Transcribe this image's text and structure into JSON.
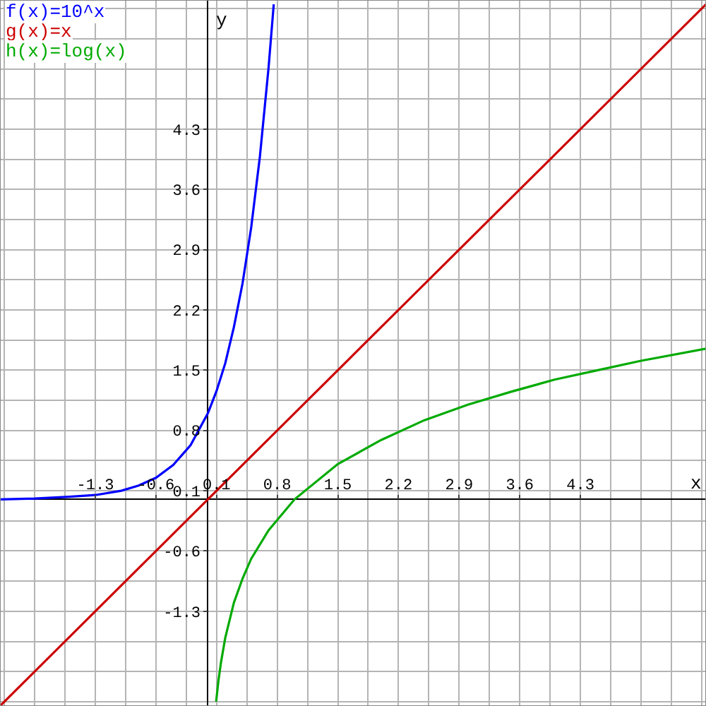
{
  "chart_data": {
    "type": "line",
    "xlabel": "x",
    "ylabel": "y",
    "xlim": [
      -2.4,
      5.75
    ],
    "ylim": [
      -2.4,
      5.8
    ],
    "xticks": [
      -1.3,
      -0.6,
      0.1,
      0.8,
      1.5,
      2.2,
      2.9,
      3.6,
      4.3
    ],
    "yticks": [
      -1.3,
      -0.6,
      0.1,
      0.8,
      1.5,
      2.2,
      2.9,
      3.6,
      4.3
    ],
    "grid": true,
    "legend": "top left",
    "marker": "none",
    "line_style": "solid",
    "series": [
      {
        "name": "f(x)=10^x",
        "color": "#0000ff",
        "x": [
          -2.4,
          -2,
          -1.6,
          -1.3,
          -1,
          -0.8,
          -0.6,
          -0.4,
          -0.2,
          0,
          0.1,
          0.2,
          0.3,
          0.4,
          0.5,
          0.6,
          0.7,
          0.76
        ],
        "values": [
          0.0,
          0.01,
          0.03,
          0.05,
          0.1,
          0.16,
          0.25,
          0.4,
          0.63,
          1,
          1.26,
          1.58,
          2.0,
          2.51,
          3.16,
          3.98,
          5.01,
          5.75
        ]
      },
      {
        "name": "g(x)=x",
        "color": "#cc0000",
        "x": [
          -2.4,
          5.75
        ],
        "values": [
          -2.4,
          5.75
        ]
      },
      {
        "name": "h(x)=log(x)",
        "color": "#00aa00",
        "x": [
          0.095,
          0.12,
          0.15,
          0.2,
          0.3,
          0.4,
          0.5,
          0.7,
          1,
          1.5,
          2,
          2.5,
          3,
          3.5,
          4,
          4.5,
          5,
          5.75
        ],
        "values": [
          -2.35,
          -2.12,
          -1.9,
          -1.61,
          -1.2,
          -0.92,
          -0.69,
          -0.36,
          0,
          0.41,
          0.69,
          0.92,
          1.1,
          1.25,
          1.39,
          1.5,
          1.61,
          1.75
        ]
      }
    ]
  }
}
